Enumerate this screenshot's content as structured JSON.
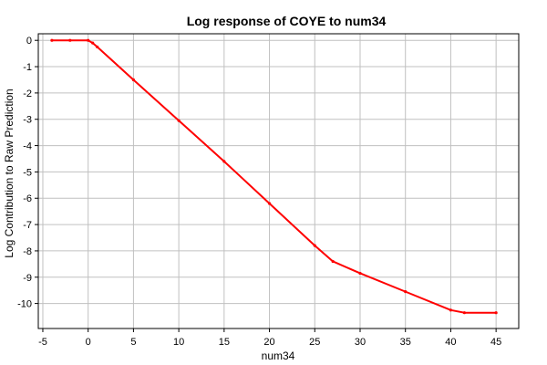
{
  "chart_data": {
    "type": "line",
    "title": "Log response of COYE to num34",
    "xlabel": "num34",
    "ylabel": "Log Contribution to Raw Prediction",
    "xlim": [
      -5.5,
      47.5
    ],
    "ylim": [
      -10.95,
      0.25
    ],
    "x_ticks": [
      -5,
      0,
      5,
      10,
      15,
      20,
      25,
      30,
      35,
      40,
      45
    ],
    "y_ticks": [
      0,
      -1,
      -2,
      -3,
      -4,
      -5,
      -6,
      -7,
      -8,
      -9,
      -10
    ],
    "grid": true,
    "series_color": "#ff0000",
    "series": [
      {
        "x": [
          -4,
          -2,
          0,
          0.5,
          1,
          5,
          10,
          15,
          20,
          25,
          27,
          30,
          35,
          40,
          41.5,
          45
        ],
        "y": [
          0,
          0,
          0,
          -0.1,
          -0.25,
          -1.5,
          -3.05,
          -4.6,
          -6.2,
          -7.8,
          -8.4,
          -8.85,
          -9.55,
          -10.25,
          -10.35,
          -10.35
        ]
      }
    ]
  }
}
